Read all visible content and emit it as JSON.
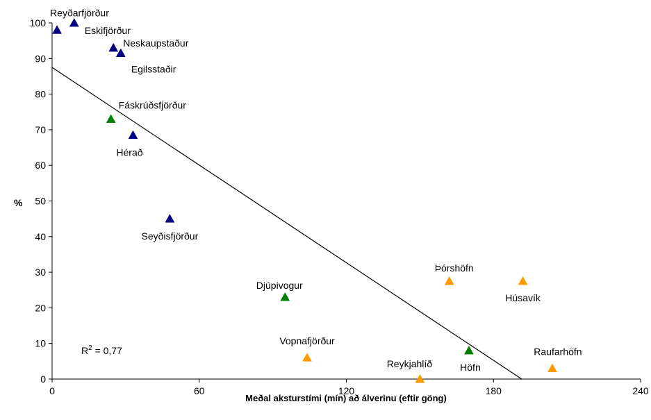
{
  "chart_data": {
    "type": "scatter",
    "title": "",
    "xlabel": "Meðal aksturstími (mín) að álverinu (eftir göng)",
    "ylabel": "%",
    "xlim": [
      0,
      240
    ],
    "ylim": [
      0,
      100
    ],
    "xticks": [
      "0",
      "60",
      "120",
      "180",
      "240"
    ],
    "yticks": [
      "0",
      "10",
      "20",
      "30",
      "40",
      "50",
      "60",
      "70",
      "80",
      "90",
      "100"
    ],
    "grid": false,
    "legend": "none",
    "colors": {
      "blue": "#000080",
      "green": "#008000",
      "orange": "#FF9900",
      "line": "#000000"
    },
    "points": [
      {
        "name": "Reyðarfjörður",
        "x": 2,
        "y": 98,
        "color": "blue",
        "label_anchor": "start",
        "label_pos": "above-right"
      },
      {
        "name": "Eskifjörður",
        "x": 9,
        "y": 100,
        "color": "blue",
        "label_pos": "below-right"
      },
      {
        "name": "Neskaupstaður",
        "x": 25,
        "y": 93,
        "color": "blue",
        "label_pos": "above-right"
      },
      {
        "name": "Egilsstaðir",
        "x": 28,
        "y": 91.5,
        "color": "blue",
        "label_pos": "below-right"
      },
      {
        "name": "Fáskrúðsfjörður",
        "x": 24,
        "y": 73,
        "color": "green",
        "label_pos": "above-right"
      },
      {
        "name": "Hérað",
        "x": 33,
        "y": 68.5,
        "color": "blue",
        "label_pos": "below"
      },
      {
        "name": "Seyðisfjörður",
        "x": 48,
        "y": 45,
        "color": "blue",
        "label_pos": "below"
      },
      {
        "name": "Djúpivogur",
        "x": 95,
        "y": 23,
        "color": "green",
        "label_pos": "above"
      },
      {
        "name": "Vopnafjörður",
        "x": 104,
        "y": 6,
        "color": "orange",
        "label_pos": "above"
      },
      {
        "name": "Reykjahlíð",
        "x": 150,
        "y": 0,
        "color": "orange",
        "label_pos": "above-left"
      },
      {
        "name": "Þórshöfn",
        "x": 162,
        "y": 27.5,
        "color": "orange",
        "label_pos": "above"
      },
      {
        "name": "Höfn",
        "x": 170,
        "y": 8,
        "color": "green",
        "label_pos": "below"
      },
      {
        "name": "Húsavík",
        "x": 192,
        "y": 27.5,
        "color": "orange",
        "label_pos": "below"
      },
      {
        "name": "Raufarhöfn",
        "x": 204,
        "y": 3,
        "color": "orange",
        "label_pos": "above"
      }
    ],
    "trendline": {
      "x": [
        0,
        191.5
      ],
      "y": [
        87.5,
        0
      ]
    },
    "annotations": {
      "r2_base": "R",
      "r2_sup": "2",
      "r2_rest": " = 0,77"
    }
  }
}
